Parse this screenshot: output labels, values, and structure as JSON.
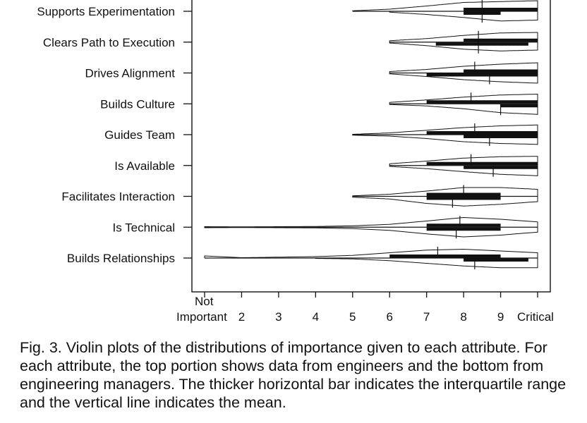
{
  "chart_data": {
    "type": "violin",
    "x_range": [
      1,
      10
    ],
    "x_ticks": [
      {
        "value": 1,
        "label": "Not Important"
      },
      {
        "value": 2,
        "label": "2"
      },
      {
        "value": 3,
        "label": "3"
      },
      {
        "value": 4,
        "label": "4"
      },
      {
        "value": 5,
        "label": "5"
      },
      {
        "value": 6,
        "label": "6"
      },
      {
        "value": 7,
        "label": "7"
      },
      {
        "value": 8,
        "label": "8"
      },
      {
        "value": 9,
        "label": "9"
      },
      {
        "value": 10,
        "label": "Critical"
      }
    ],
    "series": [
      {
        "name": "engineers",
        "position": "top"
      },
      {
        "name": "engineering managers",
        "position": "bottom"
      }
    ],
    "categories": [
      {
        "label": "Supports Experimentation",
        "top": {
          "range": [
            5,
            10
          ],
          "iqr": [
            8,
            10
          ],
          "mean": 8.5,
          "density": [
            0,
            0,
            0,
            0,
            0.03,
            0.12,
            0.3,
            0.5,
            0.55,
            0.6
          ]
        },
        "bottom": {
          "range": [
            6,
            10
          ],
          "iqr": [
            8,
            9
          ],
          "mean": 8.5,
          "density": [
            0,
            0,
            0,
            0,
            0,
            0.05,
            0.18,
            0.35,
            0.55,
            0.5
          ]
        }
      },
      {
        "label": "Clears Path to Execution",
        "top": {
          "range": [
            6,
            10
          ],
          "iqr": [
            8,
            10
          ],
          "mean": 8.4,
          "density": [
            0,
            0,
            0,
            0,
            0.02,
            0.08,
            0.2,
            0.38,
            0.52,
            0.55
          ]
        },
        "bottom": {
          "range": [
            6,
            10
          ],
          "iqr": [
            7.25,
            9.75
          ],
          "mean": 8.4,
          "density": [
            0,
            0,
            0,
            0,
            0,
            0.05,
            0.2,
            0.4,
            0.5,
            0.45
          ]
        }
      },
      {
        "label": "Drives Alignment",
        "top": {
          "range": [
            6,
            10
          ],
          "iqr": [
            8,
            10
          ],
          "mean": 8.3,
          "density": [
            0,
            0,
            0,
            0,
            0.02,
            0.08,
            0.2,
            0.38,
            0.5,
            0.58
          ]
        },
        "bottom": {
          "range": [
            6,
            10
          ],
          "iqr": [
            7,
            10
          ],
          "mean": 8.7,
          "density": [
            0,
            0,
            0,
            0,
            0,
            0.05,
            0.2,
            0.38,
            0.5,
            0.58
          ]
        }
      },
      {
        "label": "Builds Culture",
        "top": {
          "range": [
            6,
            10
          ],
          "iqr": [
            7,
            10
          ],
          "mean": 8.2,
          "density": [
            0,
            0,
            0,
            0,
            0.02,
            0.08,
            0.22,
            0.38,
            0.5,
            0.55
          ]
        },
        "bottom": {
          "range": [
            6,
            10
          ],
          "iqr": [
            9,
            10
          ],
          "mean": 9.0,
          "density": [
            0,
            0,
            0,
            0,
            0,
            0.04,
            0.12,
            0.28,
            0.5,
            0.6
          ]
        }
      },
      {
        "label": "Guides Team",
        "top": {
          "range": [
            5,
            10
          ],
          "iqr": [
            7,
            10
          ],
          "mean": 8.3,
          "density": [
            0,
            0,
            0,
            0,
            0.02,
            0.1,
            0.25,
            0.4,
            0.5,
            0.55
          ]
        },
        "bottom": {
          "range": [
            5,
            10
          ],
          "iqr": [
            8,
            10
          ],
          "mean": 8.7,
          "density": [
            0,
            0,
            0,
            0,
            0.03,
            0.08,
            0.22,
            0.4,
            0.5,
            0.55
          ]
        }
      },
      {
        "label": "Is Available",
        "top": {
          "range": [
            6,
            10
          ],
          "iqr": [
            7,
            10
          ],
          "mean": 8.2,
          "density": [
            0,
            0,
            0,
            0,
            0.02,
            0.1,
            0.25,
            0.42,
            0.5,
            0.52
          ]
        },
        "bottom": {
          "range": [
            6,
            10
          ],
          "iqr": [
            8,
            10
          ],
          "mean": 8.8,
          "density": [
            0,
            0,
            0,
            0,
            0,
            0.05,
            0.18,
            0.35,
            0.5,
            0.58
          ]
        }
      },
      {
        "label": "Facilitates Interaction",
        "top": {
          "range": [
            5,
            10
          ],
          "iqr": [
            7,
            9
          ],
          "mean": 8.0,
          "density": [
            0,
            0,
            0,
            0,
            0.03,
            0.12,
            0.3,
            0.5,
            0.5,
            0.4
          ]
        },
        "bottom": {
          "range": [
            5,
            10
          ],
          "iqr": [
            7,
            9
          ],
          "mean": 7.7,
          "density": [
            0,
            0,
            0,
            0,
            0.05,
            0.15,
            0.4,
            0.55,
            0.45,
            0.3
          ]
        }
      },
      {
        "label": "Is Technical",
        "top": {
          "range": [
            1,
            10
          ],
          "iqr": [
            7,
            9
          ],
          "mean": 7.9,
          "density": [
            0.03,
            0.02,
            0.03,
            0.04,
            0.08,
            0.16,
            0.35,
            0.55,
            0.45,
            0.3
          ]
        },
        "bottom": {
          "range": [
            1,
            10
          ],
          "iqr": [
            7,
            9
          ],
          "mean": 7.8,
          "density": [
            0.03,
            0.02,
            0.03,
            0.04,
            0.08,
            0.18,
            0.38,
            0.55,
            0.45,
            0.28
          ]
        }
      },
      {
        "label": "Builds Relationships",
        "top": {
          "range": [
            1,
            10
          ],
          "iqr": [
            6,
            9
          ],
          "mean": 7.3,
          "density": [
            0.12,
            0.02,
            0.05,
            0.08,
            0.15,
            0.3,
            0.45,
            0.5,
            0.4,
            0.3
          ]
        },
        "bottom": {
          "range": [
            4,
            10
          ],
          "iqr": [
            8,
            9.75
          ],
          "mean": 8.3,
          "density": [
            0,
            0,
            0,
            0.02,
            0.05,
            0.15,
            0.3,
            0.45,
            0.55,
            0.55
          ]
        }
      }
    ]
  },
  "caption": "Fig. 3. Violin plots of the distributions of importance given to each attribute. For each attribute, the top portion shows data from engineers and the bottom from engineering managers. The thicker horizontal bar indicates the interquartile range and the vertical line indicates the mean."
}
